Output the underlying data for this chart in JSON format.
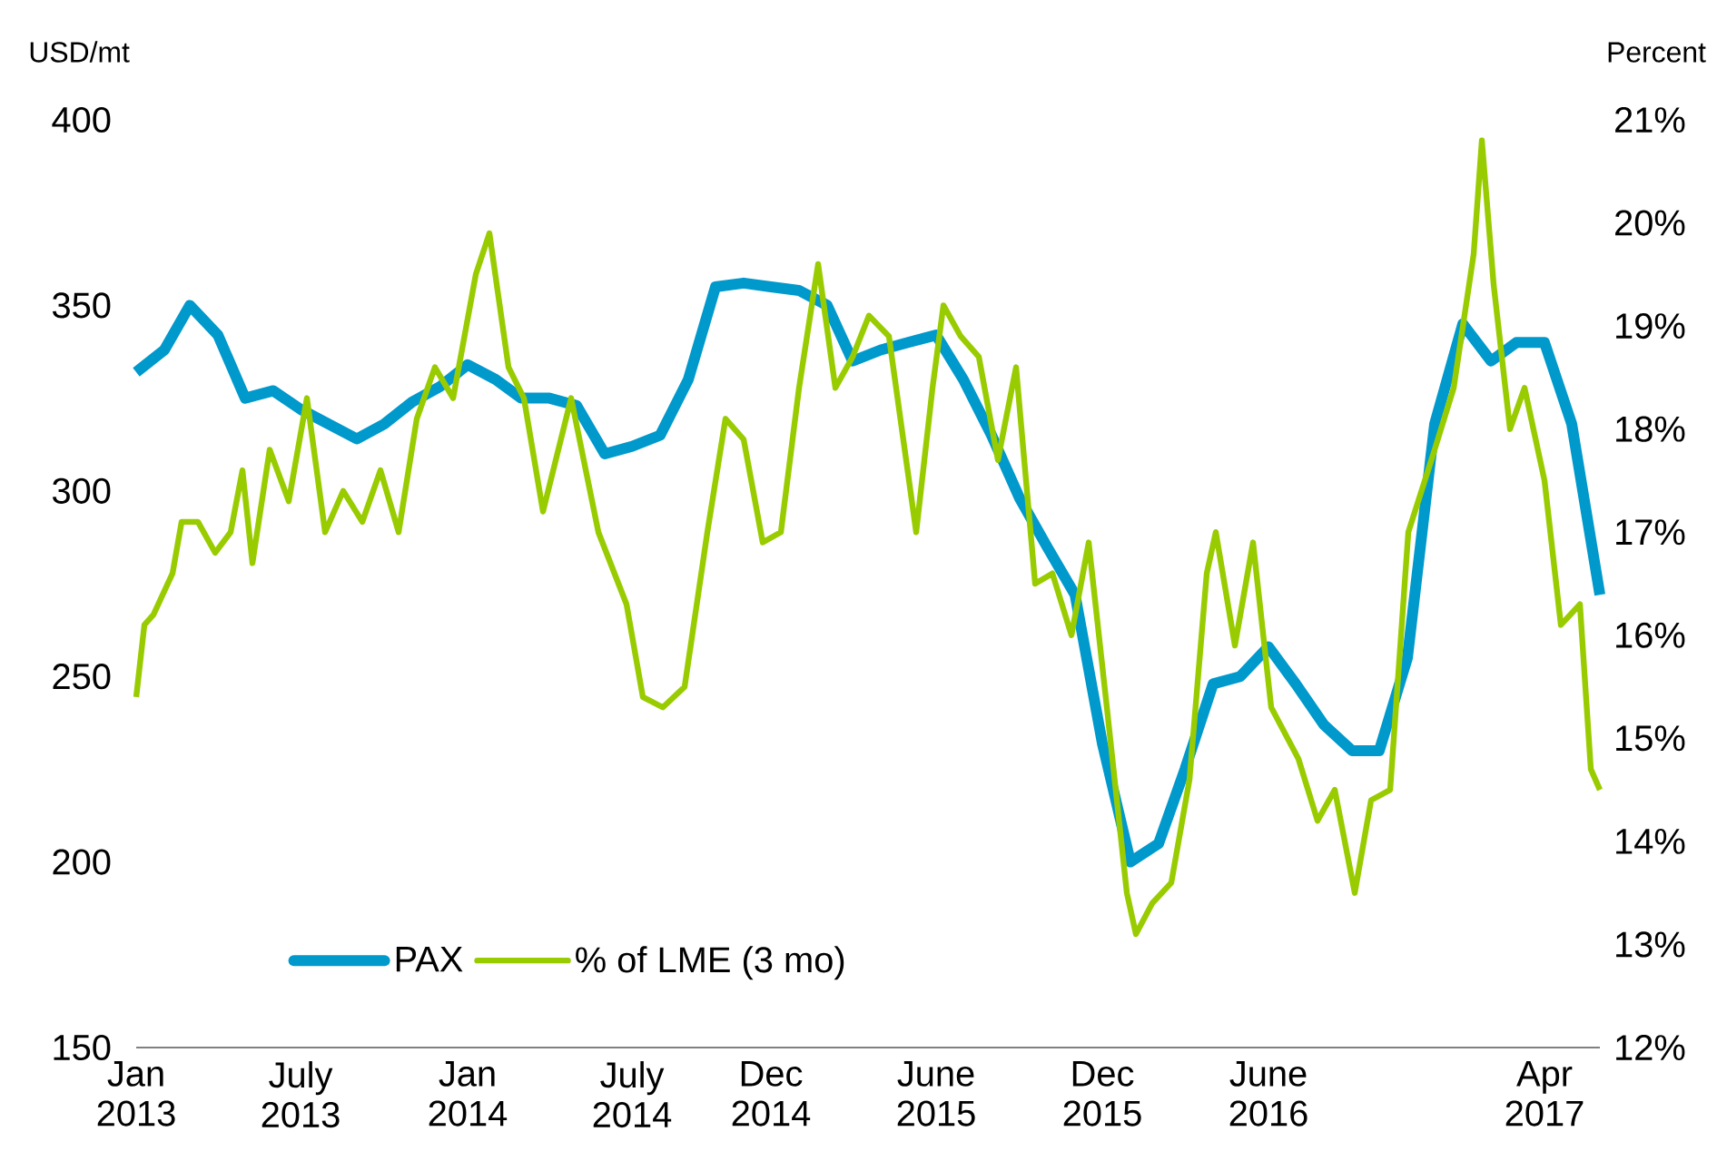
{
  "chart_data": {
    "type": "line",
    "ylabel": "USD/mt",
    "y2label": "Percent",
    "legend": "bottom left",
    "xlim": [
      "2013-01-01",
      "2017-06-01"
    ],
    "xticks": [
      {
        "value": "2013-01-01",
        "label": "Jan 2013"
      },
      {
        "value": "2013-07-01",
        "label": "July 2013"
      },
      {
        "value": "2014-01-01",
        "label": "Jan 2014"
      },
      {
        "value": "2014-07-01",
        "label": "July 2014"
      },
      {
        "value": "2014-12-01",
        "label": "Dec 2014"
      },
      {
        "value": "2015-06-01",
        "label": "June 2015"
      },
      {
        "value": "2015-12-01",
        "label": "Dec 2015"
      },
      {
        "value": "2016-06-01",
        "label": "June 2016"
      },
      {
        "value": "2017-04-01",
        "label": "Apr 2017"
      }
    ],
    "ylim": [
      150,
      400
    ],
    "yticks": [
      150,
      200,
      250,
      300,
      350,
      400
    ],
    "y2lim": [
      12,
      21
    ],
    "y2ticks": [
      {
        "value": 12,
        "label": "12%"
      },
      {
        "value": 13,
        "label": "13%"
      },
      {
        "value": 14,
        "label": "14%"
      },
      {
        "value": 15,
        "label": "15%"
      },
      {
        "value": 16,
        "label": "16%"
      },
      {
        "value": 17,
        "label": "17%"
      },
      {
        "value": 18,
        "label": "18%"
      },
      {
        "value": 19,
        "label": "19%"
      },
      {
        "value": 20,
        "label": "20%"
      },
      {
        "value": 21,
        "label": "21%"
      }
    ],
    "series": [
      {
        "name": "PAX",
        "color": "#0099cc",
        "x": [
          "2013-01-01",
          "2013-02-01",
          "2013-03-01",
          "2013-04-01",
          "2013-05-01",
          "2013-06-01",
          "2013-07-01",
          "2013-08-01",
          "2013-09-01",
          "2013-10-01",
          "2013-11-01",
          "2013-12-01",
          "2014-01-01",
          "2014-02-01",
          "2014-03-01",
          "2014-04-01",
          "2014-05-01",
          "2014-06-01",
          "2014-07-01",
          "2014-08-01",
          "2014-09-01",
          "2014-10-01",
          "2014-11-01",
          "2014-12-01",
          "2015-01-01",
          "2015-02-01",
          "2015-03-01",
          "2015-04-01",
          "2015-05-01",
          "2015-06-01",
          "2015-07-01",
          "2015-08-01",
          "2015-09-01",
          "2015-10-01",
          "2015-11-01",
          "2015-12-01",
          "2016-01-01",
          "2016-02-01",
          "2016-03-01",
          "2016-04-01",
          "2016-05-01",
          "2016-06-01",
          "2016-07-01",
          "2016-08-01",
          "2016-09-01",
          "2016-10-01",
          "2016-11-01",
          "2016-12-01",
          "2017-01-01",
          "2017-02-01",
          "2017-03-01",
          "2017-04-01",
          "2017-05-01",
          "2017-06-01"
        ],
        "values": [
          332,
          338,
          350,
          342,
          325,
          327,
          322,
          318,
          314,
          318,
          324,
          328,
          334,
          330,
          325,
          325,
          323,
          310,
          312,
          315,
          330,
          355,
          356,
          355,
          354,
          350,
          335,
          338,
          340,
          342,
          330,
          315,
          298,
          285,
          272,
          232,
          200,
          205,
          225,
          248,
          250,
          258,
          248,
          237,
          230,
          230,
          255,
          318,
          345,
          335,
          340,
          340,
          318,
          272
        ]
      },
      {
        "name": "% of LME (3 mo)",
        "color": "#99cc00",
        "axis": "y2",
        "x": [
          "2013-01-01",
          "2013-01-10",
          "2013-01-20",
          "2013-02-10",
          "2013-02-20",
          "2013-03-10",
          "2013-03-29",
          "2013-04-15",
          "2013-04-28",
          "2013-05-09",
          "2013-05-28",
          "2013-06-18",
          "2013-07-08",
          "2013-07-28",
          "2013-08-17",
          "2013-09-07",
          "2013-09-27",
          "2013-10-17",
          "2013-11-06",
          "2013-11-26",
          "2013-12-16",
          "2014-01-10",
          "2014-01-25",
          "2014-02-15",
          "2014-03-04",
          "2014-03-25",
          "2014-04-25",
          "2014-05-25",
          "2014-06-25",
          "2014-07-13",
          "2014-08-04",
          "2014-08-28",
          "2014-09-22",
          "2014-10-12",
          "2014-11-01",
          "2014-11-22",
          "2014-12-12",
          "2015-01-01",
          "2015-01-22",
          "2015-02-10",
          "2015-03-01",
          "2015-03-19",
          "2015-04-10",
          "2015-05-10",
          "2015-05-28",
          "2015-06-09",
          "2015-06-28",
          "2015-07-18",
          "2015-08-08",
          "2015-08-28",
          "2015-09-18",
          "2015-10-07",
          "2015-10-28",
          "2015-11-16",
          "2015-12-06",
          "2015-12-28",
          "2016-01-07",
          "2016-01-25",
          "2016-02-15",
          "2016-03-06",
          "2016-03-25",
          "2016-04-04",
          "2016-04-25",
          "2016-05-15",
          "2016-06-04",
          "2016-07-04",
          "2016-07-25",
          "2016-08-13",
          "2016-09-04",
          "2016-09-22",
          "2016-10-13",
          "2016-11-02",
          "2016-12-01",
          "2016-12-22",
          "2017-01-13",
          "2017-01-22",
          "2017-02-04",
          "2017-02-22",
          "2017-03-10",
          "2017-04-01",
          "2017-04-19",
          "2017-05-10",
          "2017-05-22",
          "2017-06-01"
        ],
        "values": [
          15.4,
          16.1,
          16.2,
          16.6,
          17.1,
          17.1,
          16.8,
          17.0,
          17.6,
          16.7,
          17.8,
          17.3,
          18.3,
          17.0,
          17.4,
          17.1,
          17.6,
          17.0,
          18.1,
          18.6,
          18.3,
          19.5,
          19.9,
          18.6,
          18.3,
          17.2,
          18.3,
          17.0,
          16.3,
          15.4,
          15.3,
          15.5,
          17.0,
          18.1,
          17.9,
          16.9,
          17.0,
          18.4,
          19.6,
          18.4,
          18.7,
          19.1,
          18.9,
          17.0,
          18.4,
          19.2,
          18.9,
          18.7,
          17.7,
          18.6,
          16.5,
          16.6,
          16.0,
          16.9,
          15.3,
          13.5,
          13.1,
          13.4,
          13.6,
          14.6,
          16.6,
          17.0,
          15.9,
          16.9,
          15.3,
          14.8,
          14.2,
          14.5,
          13.5,
          14.4,
          14.5,
          17.0,
          17.8,
          18.4,
          19.7,
          20.8,
          19.4,
          18.0,
          18.4,
          17.5,
          16.1,
          16.3,
          14.7,
          14.5
        ]
      }
    ]
  }
}
